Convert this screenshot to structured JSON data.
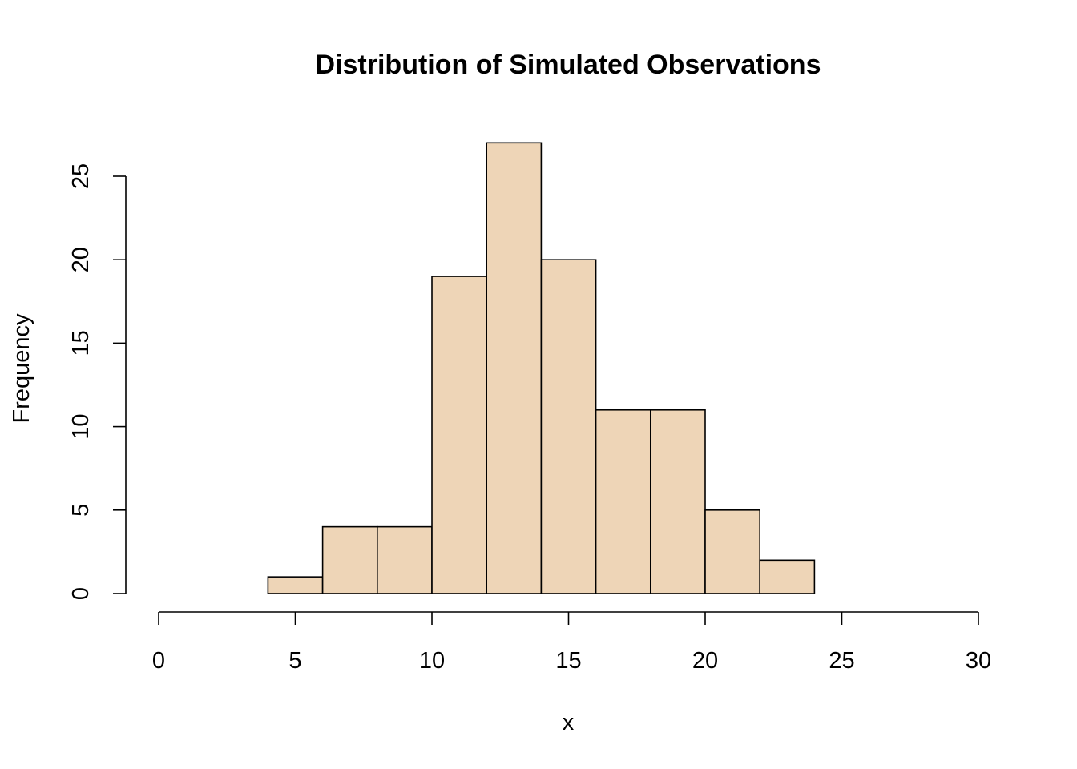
{
  "chart_data": {
    "type": "bar",
    "subtype": "histogram",
    "title": "Distribution of Simulated Observations",
    "xlabel": "x",
    "ylabel": "Frequency",
    "bins": [
      {
        "start": 4,
        "end": 6,
        "count": 1
      },
      {
        "start": 6,
        "end": 8,
        "count": 4
      },
      {
        "start": 8,
        "end": 10,
        "count": 4
      },
      {
        "start": 10,
        "end": 12,
        "count": 19
      },
      {
        "start": 12,
        "end": 14,
        "count": 27
      },
      {
        "start": 14,
        "end": 16,
        "count": 20
      },
      {
        "start": 16,
        "end": 18,
        "count": 11
      },
      {
        "start": 18,
        "end": 20,
        "count": 11
      },
      {
        "start": 20,
        "end": 22,
        "count": 5
      },
      {
        "start": 22,
        "end": 24,
        "count": 2
      }
    ],
    "xlim": [
      0,
      30
    ],
    "ylim": [
      0,
      27
    ],
    "x_ticks": [
      0,
      5,
      10,
      15,
      20,
      25,
      30
    ],
    "y_ticks": [
      0,
      5,
      10,
      15,
      20,
      25
    ],
    "grid": false,
    "legend": "none",
    "bar_color": "#EED5B7",
    "edge_color": "#000000"
  }
}
